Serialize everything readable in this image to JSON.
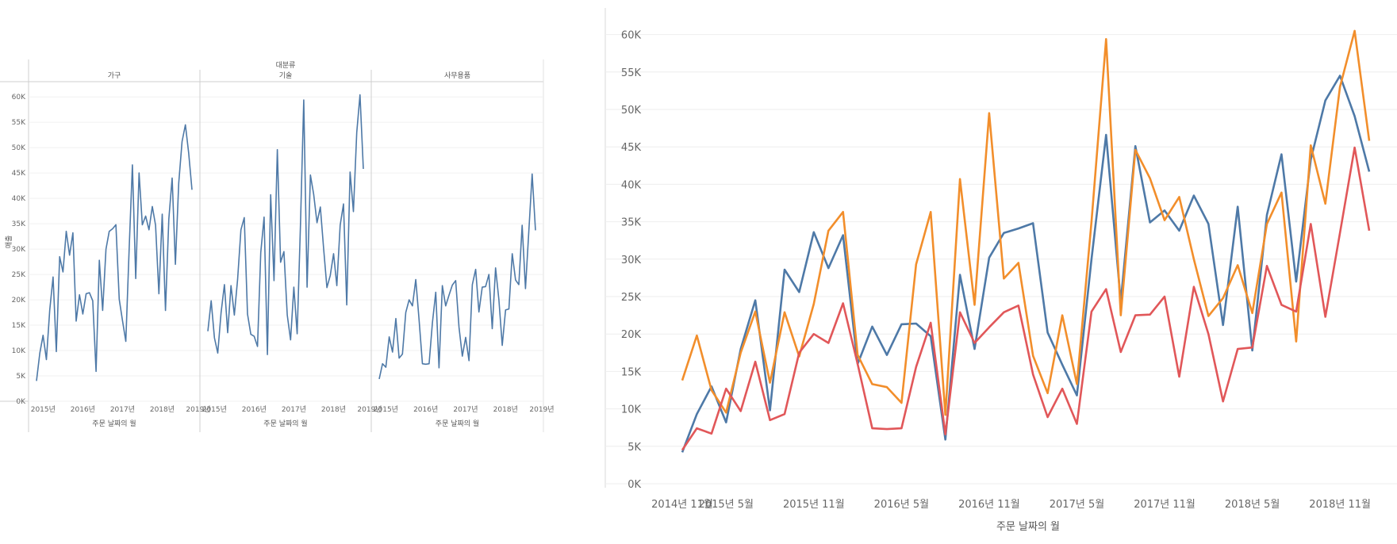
{
  "chart_data": [
    {
      "type": "line",
      "title": "",
      "column_header_title": "대분류",
      "xlabel": "주문 날짜의 월",
      "ylabel": "매출",
      "ylim": [
        0,
        63000
      ],
      "y_ticks": [
        0,
        5000,
        10000,
        15000,
        20000,
        25000,
        30000,
        35000,
        40000,
        45000,
        50000,
        55000,
        60000
      ],
      "y_tick_labels": [
        "0K",
        "5K",
        "10K",
        "15K",
        "20K",
        "25K",
        "30K",
        "35K",
        "40K",
        "45K",
        "50K",
        "55K",
        "60K"
      ],
      "x_tick_labels": [
        "2015년",
        "2016년",
        "2017년",
        "2018년",
        "2019년"
      ],
      "color": "#4e79a7",
      "panels": [
        {
          "name": "가구",
          "values": [
            4000,
            9500,
            13000,
            8200,
            18000,
            24500,
            9800,
            28500,
            25500,
            33500,
            28800,
            33200,
            15800,
            21000,
            17200,
            21200,
            21400,
            19800,
            5900,
            27800,
            17900,
            30000,
            33500,
            34000,
            34800,
            20100,
            15900,
            11800,
            30000,
            46600,
            24200,
            45000,
            34800,
            36500,
            33800,
            38400,
            34700,
            21200,
            36900,
            17900,
            35900,
            44000,
            27000,
            43000,
            51200,
            54500,
            49000,
            41700
          ]
        },
        {
          "name": "기술",
          "values": [
            13800,
            19800,
            12500,
            9500,
            17500,
            23000,
            13500,
            22800,
            17000,
            24000,
            33800,
            36200,
            17200,
            13200,
            12800,
            10800,
            29300,
            36300,
            9200,
            40700,
            23800,
            49600,
            27400,
            29500,
            17000,
            12100,
            22500,
            13300,
            35000,
            59400,
            22500,
            44600,
            40800,
            35200,
            38300,
            30000,
            22400,
            24800,
            29100,
            22800,
            34700,
            38900,
            19000,
            45200,
            37400,
            53000,
            60400,
            45800
          ]
        },
        {
          "name": "사무용품",
          "values": [
            4400,
            7400,
            6700,
            12700,
            9700,
            16300,
            8500,
            9300,
            17500,
            20000,
            18800,
            24000,
            16000,
            7400,
            7300,
            7400,
            15500,
            21500,
            6600,
            22800,
            18800,
            20900,
            22900,
            23800,
            14600,
            8900,
            12600,
            8000,
            23000,
            26000,
            17600,
            22500,
            22600,
            25000,
            14300,
            26300,
            20000,
            11000,
            18000,
            18200,
            29100,
            23900,
            23000,
            34700,
            22200,
            33500,
            44800,
            33700
          ]
        }
      ]
    },
    {
      "type": "line",
      "title": "",
      "xlabel": "주문 날짜의 월",
      "ylabel": "",
      "ylim": [
        0,
        62500
      ],
      "y_ticks": [
        0,
        5000,
        10000,
        15000,
        20000,
        25000,
        30000,
        35000,
        40000,
        45000,
        50000,
        55000,
        60000
      ],
      "y_tick_labels": [
        "0K",
        "5K",
        "10K",
        "15K",
        "20K",
        "25K",
        "30K",
        "35K",
        "40K",
        "45K",
        "50K",
        "55K",
        "60K"
      ],
      "x_tick_labels": [
        "2014년 11월",
        "2015년 5월",
        "2015년 11월",
        "2016년 5월",
        "2016년 11월",
        "2017년 5월",
        "2017년 11월",
        "2018년 5월",
        "2018년 11월"
      ],
      "x_tick_index": [
        0,
        3,
        9,
        15,
        21,
        27,
        33,
        39,
        45
      ],
      "series": [
        {
          "name": "가구",
          "color": "#4e79a7",
          "values": [
            4200,
            9300,
            13000,
            8200,
            18000,
            24500,
            9800,
            28600,
            25600,
            33600,
            28800,
            33200,
            16000,
            21000,
            17200,
            21300,
            21400,
            19700,
            5900,
            27900,
            18000,
            30200,
            33500,
            34100,
            34800,
            20200,
            15900,
            11800,
            30000,
            46600,
            24300,
            45100,
            34900,
            36500,
            33800,
            38500,
            34700,
            21200,
            37000,
            17800,
            35900,
            44000,
            27000,
            43300,
            51200,
            54500,
            49100,
            41700
          ]
        },
        {
          "name": "기술",
          "color": "#f28e2b",
          "values": [
            13800,
            19800,
            12500,
            9500,
            17500,
            23000,
            13500,
            22900,
            17000,
            24000,
            33800,
            36300,
            17200,
            13300,
            12900,
            10800,
            29300,
            36300,
            9200,
            40700,
            23900,
            49500,
            27400,
            29500,
            17100,
            12100,
            22500,
            13300,
            35000,
            59400,
            22500,
            44600,
            40800,
            35200,
            38300,
            30000,
            22400,
            24800,
            29200,
            22800,
            34700,
            38900,
            19000,
            45200,
            37400,
            53000,
            60500,
            45800
          ]
        },
        {
          "name": "사무용품",
          "color": "#e15759",
          "values": [
            4500,
            7400,
            6700,
            12700,
            9700,
            16300,
            8500,
            9300,
            17500,
            20000,
            18800,
            24100,
            16000,
            7400,
            7300,
            7400,
            15600,
            21500,
            6600,
            22900,
            18800,
            20900,
            22900,
            23800,
            14600,
            8900,
            12700,
            8000,
            23000,
            26000,
            17600,
            22500,
            22600,
            25000,
            14300,
            26300,
            20000,
            11000,
            18000,
            18200,
            29100,
            23900,
            23000,
            34700,
            22300,
            33500,
            44900,
            33800
          ]
        }
      ]
    }
  ]
}
